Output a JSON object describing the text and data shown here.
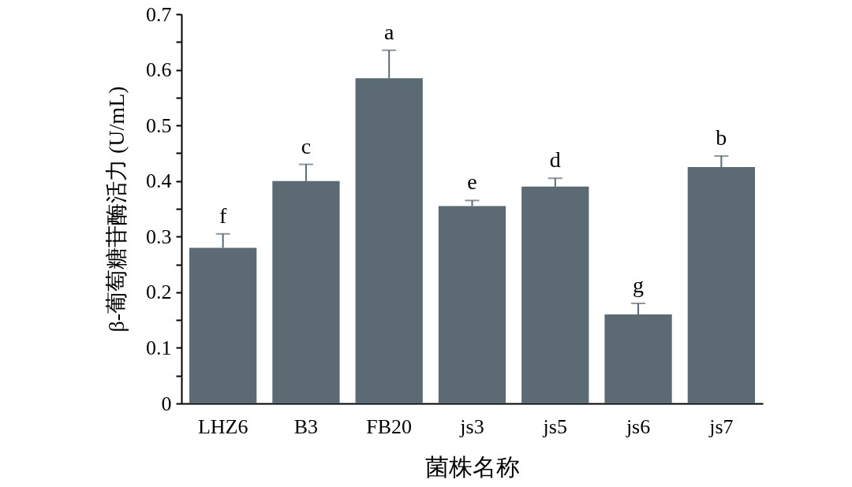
{
  "chart_data": {
    "type": "bar",
    "categories": [
      "LHZ6",
      "B3",
      "FB20",
      "js3",
      "js5",
      "js6",
      "js7"
    ],
    "values": [
      0.28,
      0.4,
      0.585,
      0.355,
      0.39,
      0.16,
      0.425
    ],
    "errors": [
      [
        0.28,
        0.305
      ],
      [
        0.4,
        0.43
      ],
      [
        0.585,
        0.635
      ],
      [
        0.355,
        0.365
      ],
      [
        0.39,
        0.405
      ],
      [
        0.16,
        0.18
      ],
      [
        0.425,
        0.445
      ]
    ],
    "color": "#5c6a74",
    "xlabel": "菌株名称",
    "ylabel": "β-葡萄糖苷酶活力 (U/mL)",
    "ylim": [
      0,
      0.7
    ],
    "yticks": [
      0,
      {
        "value": 0.05,
        "label": null
      },
      0.1,
      {
        "value": 0.15,
        "label": null
      },
      0.2,
      {
        "value": 0.25,
        "label": null
      },
      0.3,
      {
        "value": 0.35,
        "label": null
      },
      0.4,
      {
        "value": 0.45,
        "label": null
      },
      0.5,
      {
        "value": 0.55,
        "label": null
      },
      0.6,
      {
        "value": 0.65,
        "label": null
      },
      0.7
    ],
    "annotations": [
      {
        "text": "f",
        "x": "LHZ6",
        "y": 0.305
      },
      {
        "text": "c",
        "x": "B3",
        "y": 0.43
      },
      {
        "text": "a",
        "x": "FB20",
        "y": 0.635
      },
      {
        "text": "e",
        "x": "js3",
        "y": 0.365
      },
      {
        "text": "d",
        "x": "js5",
        "y": 0.405
      },
      {
        "text": "g",
        "x": "js6",
        "y": 0.18
      },
      {
        "text": "b",
        "x": "js7",
        "y": 0.445
      }
    ]
  }
}
